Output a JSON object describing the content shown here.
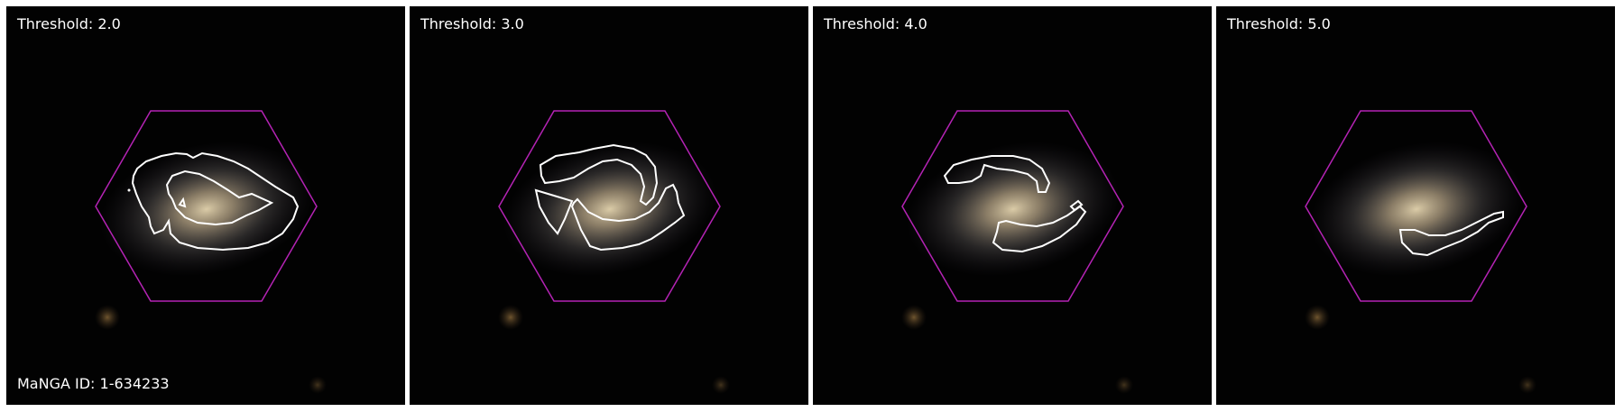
{
  "panels": [
    {
      "threshold_label": "Threshold: 2.0"
    },
    {
      "threshold_label": "Threshold: 3.0"
    },
    {
      "threshold_label": "Threshold: 4.0"
    },
    {
      "threshold_label": "Threshold: 5.0"
    }
  ],
  "galaxy_id_label": "MaNGA ID: 1-634233",
  "colors": {
    "background": "#020202",
    "hexagon": "#b423b4",
    "contour": "#ffffff",
    "galaxy_core": "#d8c8a6"
  }
}
